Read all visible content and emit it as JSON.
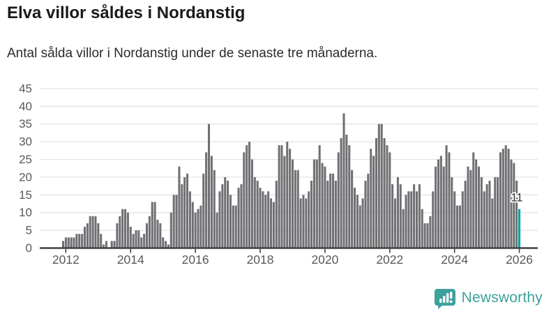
{
  "header": {
    "title": "Elva villor såldes i Nordanstig",
    "subtitle": "Antal sålda villor i Nordanstig under de senaste tre månaderna."
  },
  "colors": {
    "bar": "#6f7073",
    "highlight": "#00a2a4",
    "gridline": "#e3e3e3",
    "axis": "#404040",
    "tick_text": "#58595b",
    "title_text": "#1a1a1a",
    "brand_teal": "#3ea19c",
    "annotation_text": "#333333"
  },
  "chart_data": {
    "type": "bar",
    "title": "Elva villor såldes i Nordanstig",
    "subtitle": "Antal sålda villor i Nordanstig under de senaste tre månaderna.",
    "frequency": "monthly",
    "x_start": "2011-12",
    "x_end": "2026-01",
    "values": [
      2,
      3,
      3,
      3,
      3,
      4,
      4,
      4,
      6,
      7,
      9,
      9,
      9,
      7,
      4,
      1,
      2,
      0,
      2,
      2,
      7,
      9,
      11,
      11,
      10,
      6,
      4,
      5,
      5,
      3,
      4,
      7,
      9,
      13,
      13,
      8,
      7,
      3,
      2,
      1,
      10,
      15,
      15,
      23,
      18,
      20,
      21,
      16,
      13,
      10,
      11,
      12,
      21,
      27,
      35,
      26,
      22,
      10,
      16,
      18,
      20,
      19,
      15,
      12,
      12,
      17,
      18,
      27,
      29,
      30,
      25,
      20,
      19,
      17,
      16,
      15,
      16,
      14,
      13,
      19,
      29,
      29,
      26,
      30,
      28,
      25,
      22,
      22,
      14,
      15,
      14,
      16,
      19,
      25,
      25,
      29,
      24,
      23,
      19,
      21,
      21,
      19,
      27,
      31,
      38,
      32,
      29,
      22,
      17,
      15,
      12,
      14,
      19,
      21,
      28,
      26,
      31,
      35,
      35,
      31,
      29,
      27,
      18,
      14,
      20,
      18,
      11,
      15,
      16,
      16,
      18,
      16,
      18,
      11,
      7,
      7,
      9,
      16,
      23,
      25,
      26,
      23,
      29,
      27,
      20,
      16,
      12,
      12,
      16,
      19,
      23,
      22,
      27,
      25,
      23,
      20,
      16,
      18,
      19,
      14,
      20,
      20,
      27,
      28,
      29,
      28,
      25,
      24,
      19,
      11
    ],
    "ylim": [
      0,
      45
    ],
    "y_ticks": [
      0,
      5,
      10,
      15,
      20,
      25,
      30,
      35,
      40,
      45
    ],
    "x_ticks": [
      {
        "label": "2012",
        "month_index": 1
      },
      {
        "label": "2014",
        "month_index": 25
      },
      {
        "label": "2016",
        "month_index": 49
      },
      {
        "label": "2018",
        "month_index": 73
      },
      {
        "label": "2020",
        "month_index": 97
      },
      {
        "label": "2022",
        "month_index": 121
      },
      {
        "label": "2024",
        "month_index": 145
      },
      {
        "label": "2026",
        "month_index": 169
      }
    ],
    "grid": true,
    "legend": "none",
    "highlight": {
      "index": 169,
      "value": 11,
      "label": "11"
    }
  },
  "footer": {
    "brand": "Newsworthy"
  }
}
